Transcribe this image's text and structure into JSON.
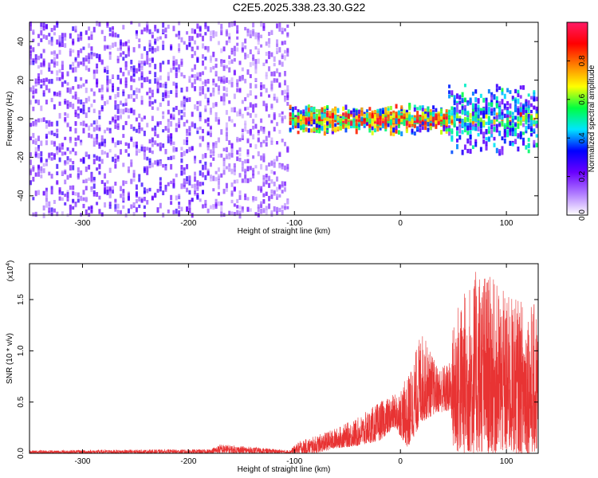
{
  "title": "C2E5.2025.338.23.30.G22",
  "chart_data": [
    {
      "type": "heatmap",
      "xlabel": "Height of straight line (km)",
      "ylabel": "Frequency (Hz)",
      "xlim": [
        -350,
        130
      ],
      "ylim": [
        -50,
        50
      ],
      "xticks": [
        -300,
        -200,
        -100,
        0,
        100
      ],
      "yticks": [
        -40,
        -20,
        0,
        20,
        40
      ],
      "colorbar": {
        "label": "Normalized spectral amplitude",
        "range": [
          0.0,
          1.0
        ],
        "ticks": [
          "0.0",
          "0.2",
          "0.4",
          "0.6",
          "0.8"
        ],
        "colors": [
          "#ffffff",
          "#b07cff",
          "#6a00ff",
          "#0000ff",
          "#00e5ff",
          "#00ff40",
          "#ffff00",
          "#ff8000",
          "#ff0000",
          "#ff1a66"
        ]
      },
      "regions": [
        {
          "x": [
            -350,
            -180
          ],
          "freq_spread": 50,
          "amplitude": 0.18,
          "description_level": "dense noise"
        },
        {
          "x": [
            -180,
            -105
          ],
          "freq_spread": 50,
          "amplitude": 0.14,
          "description_level": "noise"
        },
        {
          "x": [
            -105,
            45
          ],
          "freq_center": 0,
          "freq_spread": 6,
          "amplitude": 0.55
        },
        {
          "x": [
            45,
            130
          ],
          "freq_center": 0,
          "freq_spread": 15,
          "amplitude": 0.35
        }
      ]
    },
    {
      "type": "line",
      "xlabel": "Height of straight line (km)",
      "ylabel": "SNR (10 * v/v)",
      "scale_label": "(x10",
      "scale_exponent": "4",
      "xlim": [
        -350,
        130
      ],
      "ylim": [
        0,
        1.85
      ],
      "xticks": [
        -300,
        -200,
        -100,
        0,
        100
      ],
      "yticks": [
        "0.0",
        "0.5",
        "1.0",
        "1.5"
      ],
      "color": "#e83333",
      "envelope": [
        {
          "x": -350,
          "min": 0.0,
          "max": 0.03
        },
        {
          "x": -180,
          "min": 0.0,
          "max": 0.04
        },
        {
          "x": -170,
          "min": 0.0,
          "max": 0.09
        },
        {
          "x": -105,
          "min": 0.0,
          "max": 0.03
        },
        {
          "x": -95,
          "min": 0.0,
          "max": 0.12
        },
        {
          "x": -80,
          "min": 0.0,
          "max": 0.17
        },
        {
          "x": -60,
          "min": 0.05,
          "max": 0.25
        },
        {
          "x": -40,
          "min": 0.07,
          "max": 0.35
        },
        {
          "x": -20,
          "min": 0.12,
          "max": 0.5
        },
        {
          "x": -5,
          "min": 0.25,
          "max": 0.58
        },
        {
          "x": 7,
          "min": 0.05,
          "max": 0.75
        },
        {
          "x": 20,
          "min": 0.3,
          "max": 1.2
        },
        {
          "x": 35,
          "min": 0.4,
          "max": 0.85
        },
        {
          "x": 48,
          "min": 0.4,
          "max": 0.9
        },
        {
          "x": 50,
          "min": 0.0,
          "max": 1.4
        },
        {
          "x": 75,
          "min": 0.0,
          "max": 1.85
        },
        {
          "x": 100,
          "min": 0.0,
          "max": 1.55
        },
        {
          "x": 130,
          "min": 0.0,
          "max": 1.45
        }
      ]
    }
  ]
}
